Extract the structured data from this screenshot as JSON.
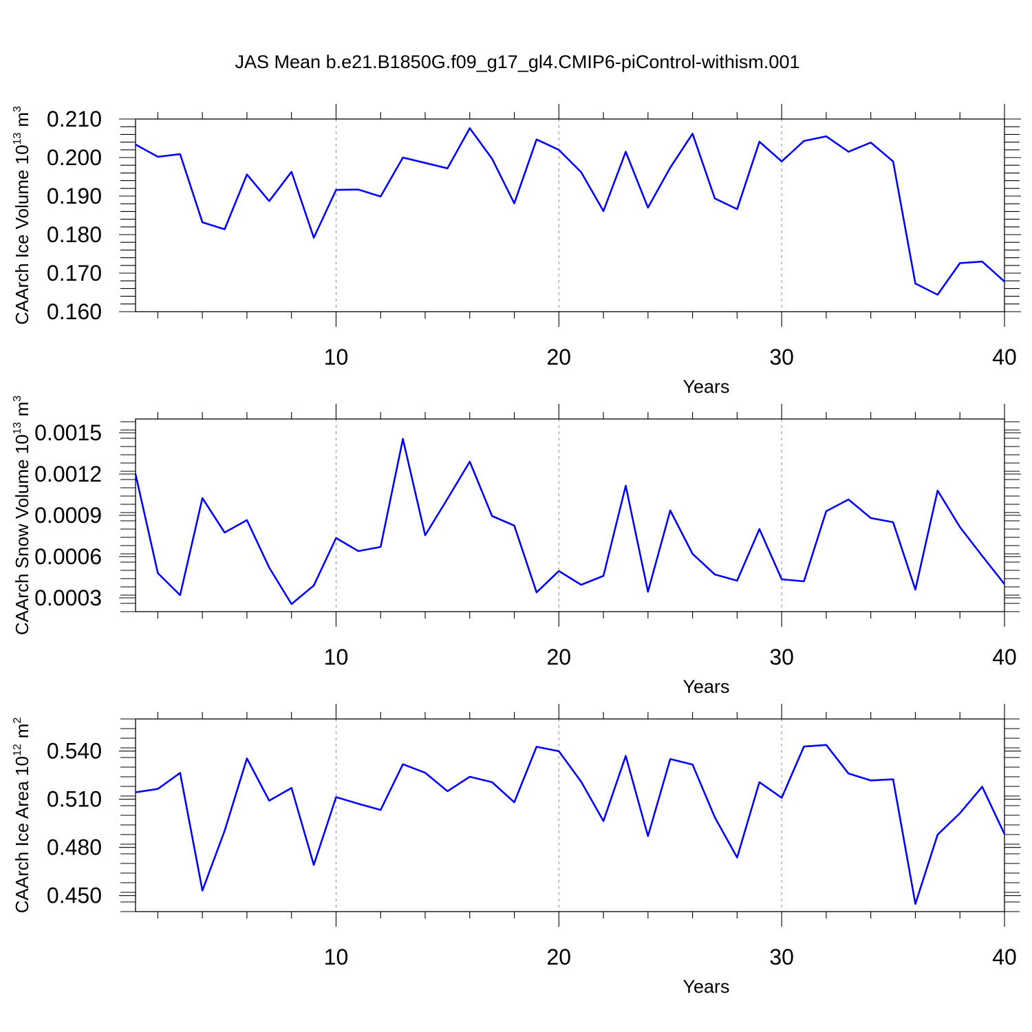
{
  "title": "JAS Mean b.e21.B1850G.f09_g17_gl4.CMIP6-piControl-withism.001",
  "chart_data": [
    {
      "type": "line",
      "ylabel": "CAArch Ice Volume 10",
      "ylabel_exp": "13",
      "ylabel_unit": "m",
      "ylabel_unit_exp": "3",
      "xlabel": "Years",
      "xlim": [
        1,
        40
      ],
      "ylim": [
        0.16,
        0.21
      ],
      "xticks": [
        10,
        20,
        30,
        40
      ],
      "xtick_labels": [
        "10",
        "20",
        "30",
        "40"
      ],
      "yticks": [
        0.16,
        0.17,
        0.18,
        0.19,
        0.2,
        0.21
      ],
      "ytick_labels": [
        "0.160",
        "0.170",
        "0.180",
        "0.190",
        "0.200",
        "0.210"
      ],
      "grid": "dashed vertical at 10, 20, 30",
      "color": "#0000ff",
      "x": [
        1,
        2,
        3,
        4,
        5,
        6,
        7,
        8,
        9,
        10,
        11,
        12,
        13,
        14,
        15,
        16,
        17,
        18,
        19,
        20,
        21,
        22,
        23,
        24,
        25,
        26,
        27,
        28,
        29,
        30,
        31,
        32,
        33,
        34,
        35,
        36,
        37,
        38,
        39,
        40
      ],
      "values": [
        0.2034,
        0.2002,
        0.2009,
        0.1832,
        0.1814,
        0.1956,
        0.1887,
        0.1963,
        0.1792,
        0.1916,
        0.1917,
        0.1899,
        0.2,
        0.1986,
        0.1972,
        0.2076,
        0.1997,
        0.1881,
        0.2047,
        0.202,
        0.1962,
        0.1861,
        0.2015,
        0.187,
        0.1974,
        0.2062,
        0.1894,
        0.1866,
        0.2041,
        0.199,
        0.2043,
        0.2055,
        0.2015,
        0.2039,
        0.199,
        0.1673,
        0.1644,
        0.1726,
        0.173,
        0.1678
      ]
    },
    {
      "type": "line",
      "ylabel": "CAArch Snow Volume 10",
      "ylabel_exp": "13",
      "ylabel_unit": "m",
      "ylabel_unit_exp": "3",
      "xlabel": "Years",
      "xlim": [
        1,
        40
      ],
      "ylim": [
        0.0002,
        0.0016
      ],
      "xticks": [
        10,
        20,
        30,
        40
      ],
      "xtick_labels": [
        "10",
        "20",
        "30",
        "40"
      ],
      "yticks": [
        0.0003,
        0.0006,
        0.0009,
        0.0012,
        0.0015
      ],
      "ytick_labels": [
        "0.0003",
        "0.0006",
        "0.0009",
        "0.0012",
        "0.0015"
      ],
      "grid": "dashed vertical at 10, 20, 30",
      "color": "#0000ff",
      "x": [
        1,
        2,
        3,
        4,
        5,
        6,
        7,
        8,
        9,
        10,
        11,
        12,
        13,
        14,
        15,
        16,
        17,
        18,
        19,
        20,
        21,
        22,
        23,
        24,
        25,
        26,
        27,
        28,
        29,
        30,
        31,
        32,
        33,
        34,
        35,
        36,
        37,
        38,
        39,
        40
      ],
      "values": [
        0.0012,
        0.00048,
        0.00032,
        0.001025,
        0.000775,
        0.000865,
        0.00052,
        0.000255,
        0.00039,
        0.000735,
        0.00064,
        0.00067,
        0.001455,
        0.000755,
        0.00102,
        0.00129,
        0.000895,
        0.000825,
        0.00034,
        0.000495,
        0.000395,
        0.00046,
        0.001115,
        0.000345,
        0.000935,
        0.00062,
        0.00047,
        0.000425,
        0.0008,
        0.000435,
        0.00042,
        0.00093,
        0.001015,
        0.00088,
        0.00085,
        0.00036,
        0.00108,
        0.000815,
        0.000605,
        0.0004
      ]
    },
    {
      "type": "line",
      "ylabel": "CAArch Ice Area 10",
      "ylabel_exp": "12",
      "ylabel_unit": "m",
      "ylabel_unit_exp": "2",
      "xlabel": "Years",
      "xlim": [
        1,
        40
      ],
      "ylim": [
        0.44,
        0.56
      ],
      "xticks": [
        10,
        20,
        30,
        40
      ],
      "xtick_labels": [
        "10",
        "20",
        "30",
        "40"
      ],
      "yticks": [
        0.45,
        0.48,
        0.51,
        0.54
      ],
      "ytick_labels": [
        "0.450",
        "0.480",
        "0.510",
        "0.540"
      ],
      "grid": "dashed vertical at 10, 20, 30",
      "color": "#0000ff",
      "x": [
        1,
        2,
        3,
        4,
        5,
        6,
        7,
        8,
        9,
        10,
        11,
        12,
        13,
        14,
        15,
        16,
        17,
        18,
        19,
        20,
        21,
        22,
        23,
        24,
        25,
        26,
        27,
        28,
        29,
        30,
        31,
        32,
        33,
        34,
        35,
        36,
        37,
        38,
        39,
        40
      ],
      "values": [
        0.5143,
        0.5164,
        0.5264,
        0.4531,
        0.4903,
        0.5354,
        0.5091,
        0.517,
        0.4691,
        0.5113,
        0.5072,
        0.5033,
        0.5318,
        0.5265,
        0.515,
        0.524,
        0.5206,
        0.5081,
        0.5427,
        0.5399,
        0.5209,
        0.4964,
        0.537,
        0.487,
        0.535,
        0.5316,
        0.4987,
        0.4737,
        0.5206,
        0.5109,
        0.5428,
        0.5438,
        0.526,
        0.5217,
        0.5224,
        0.4448,
        0.4879,
        0.5013,
        0.5178,
        0.4883
      ]
    }
  ]
}
